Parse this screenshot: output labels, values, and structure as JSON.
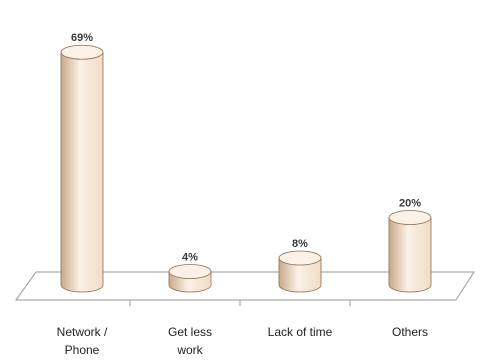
{
  "chart_data": {
    "type": "bar",
    "style": "3d-cylinder",
    "title": "",
    "xlabel": "",
    "ylabel": "",
    "ylim": [
      0,
      75
    ],
    "grid": false,
    "categories": [
      [
        "Network /",
        "Phone"
      ],
      [
        "Get less",
        "work"
      ],
      [
        "Lack of time"
      ],
      [
        "Others"
      ]
    ],
    "values": [
      69,
      4,
      8,
      20
    ],
    "value_labels": [
      "69%",
      "4%",
      "8%",
      "20%"
    ],
    "colors": {
      "bar_light": "#fbf1e6",
      "bar_mid": "#f0dcc6",
      "bar_dark": "#c9a98a",
      "bar_stroke": "#8c6e55",
      "floor_stroke": "#9a9a9a"
    }
  }
}
